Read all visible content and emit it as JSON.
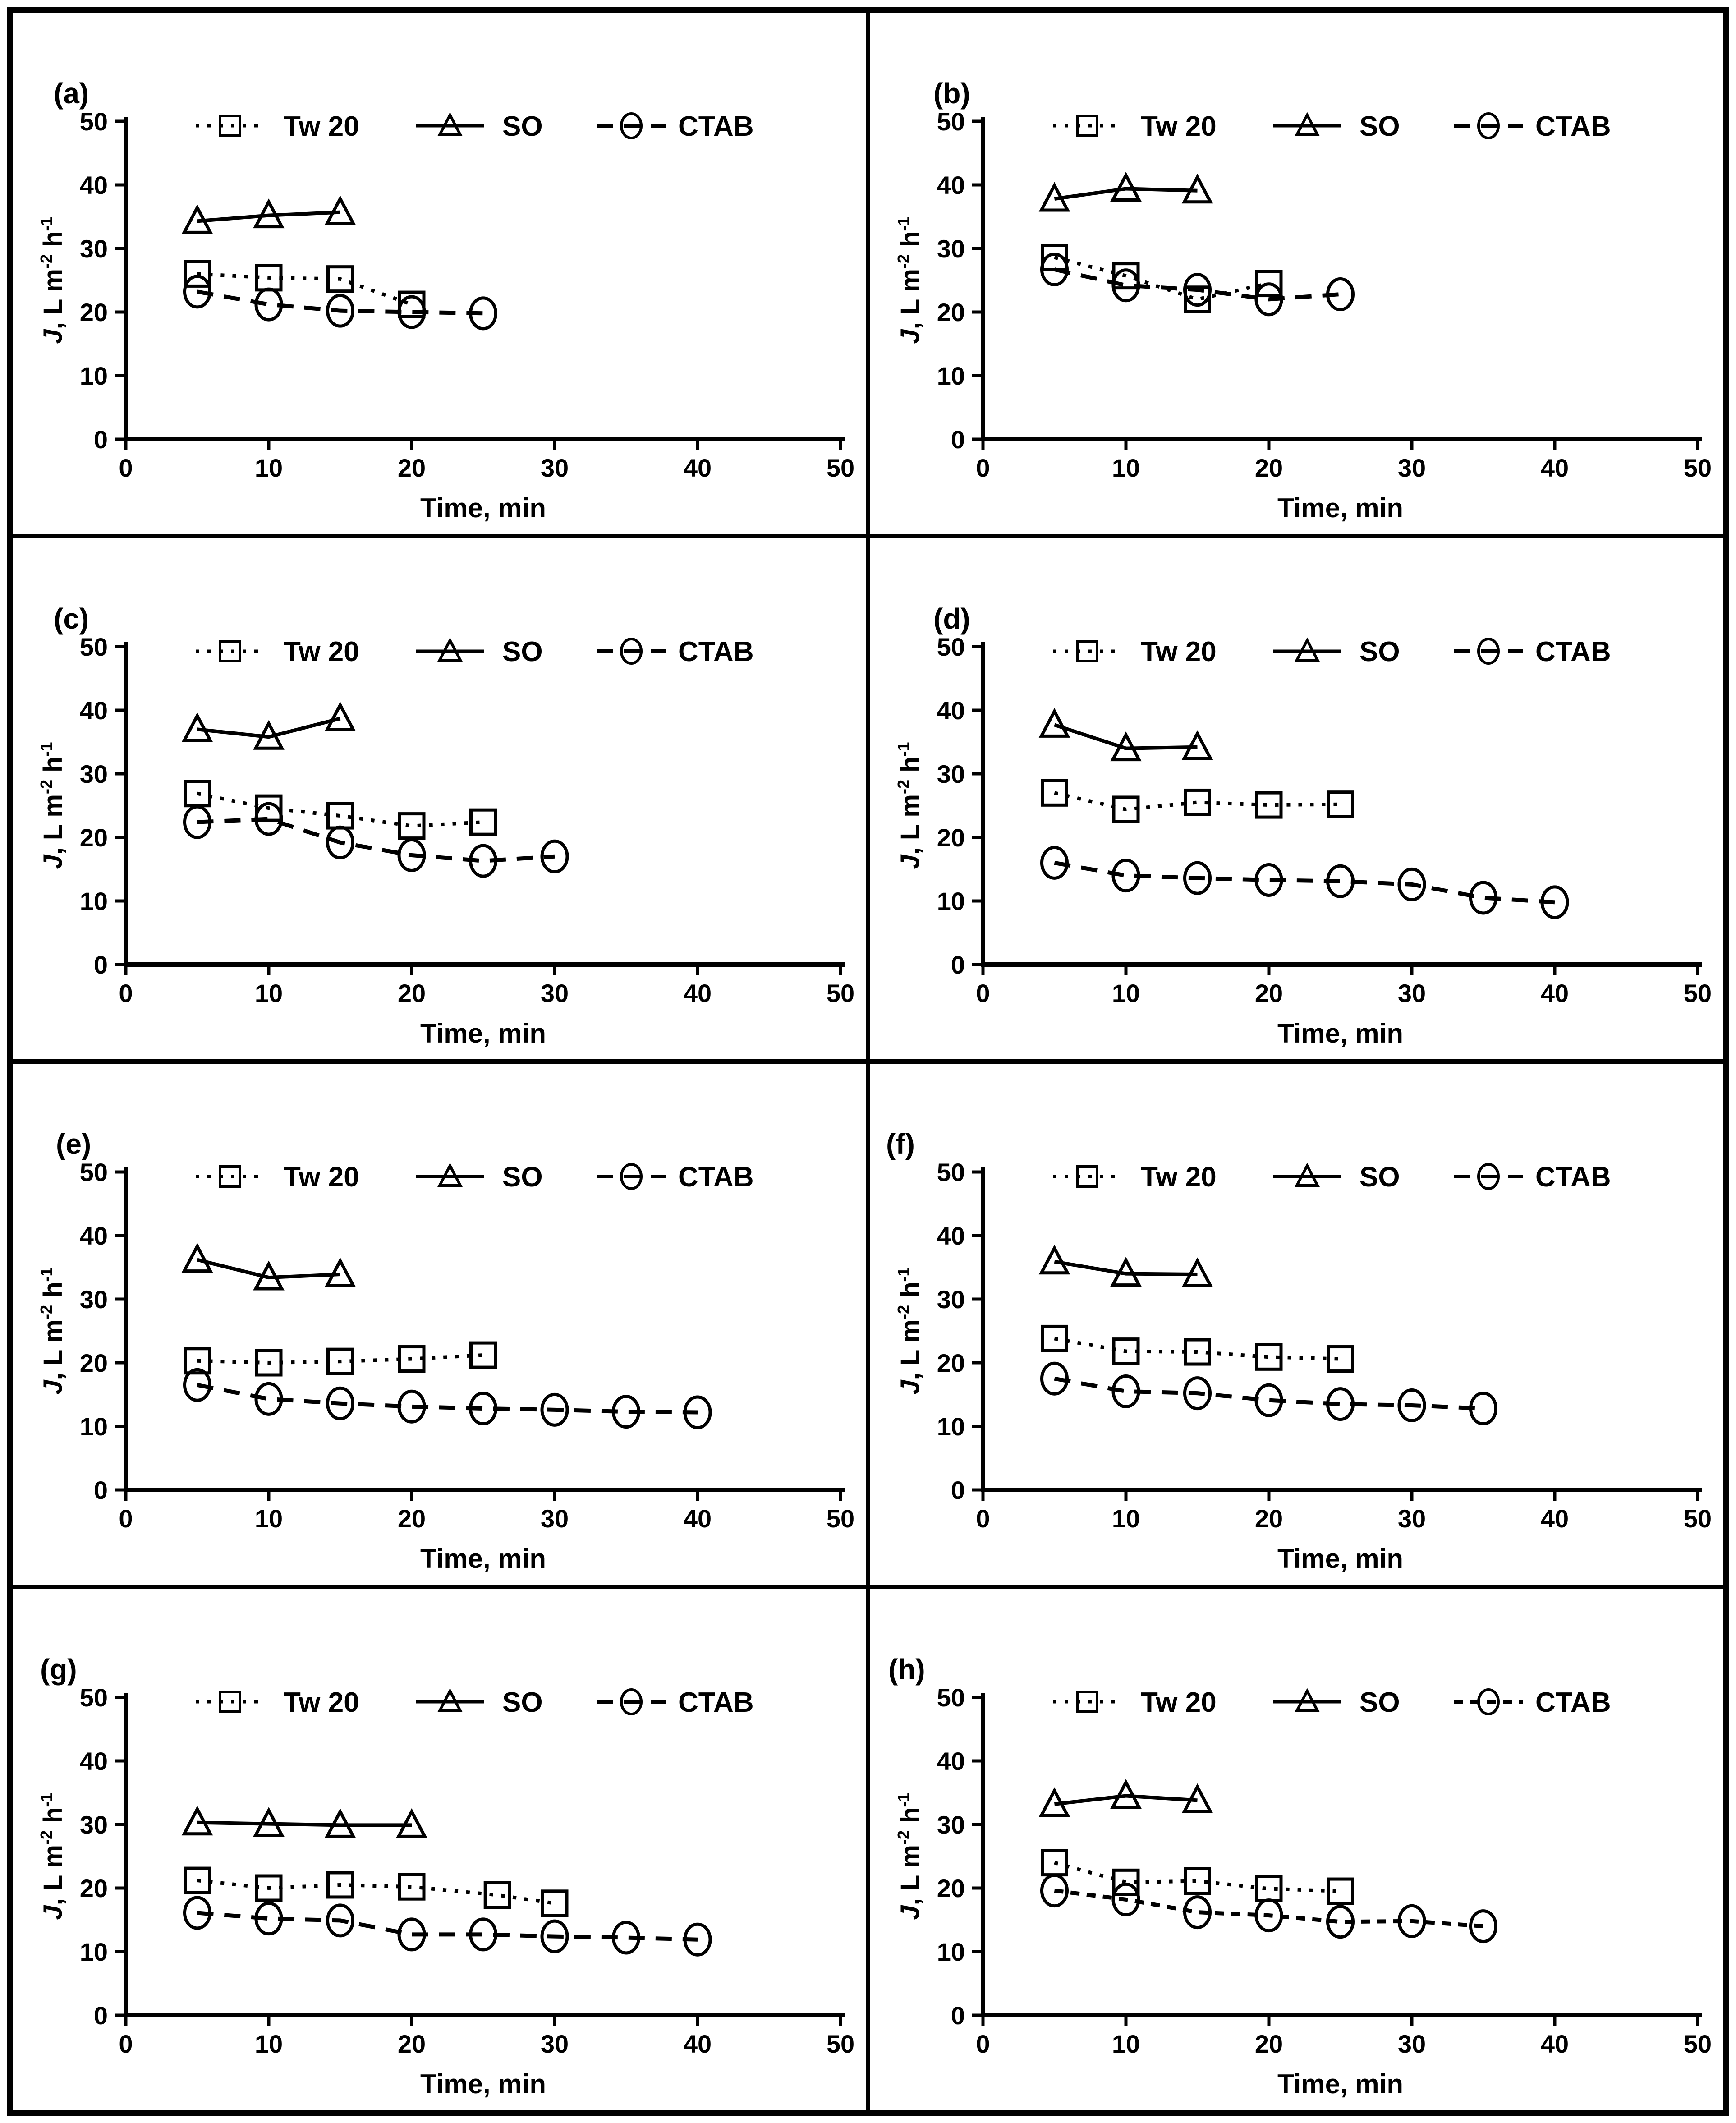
{
  "figure": {
    "background": "#ffffff",
    "ink_color": "#000000",
    "border_color": "#000000",
    "legend": [
      {
        "label": "Tw 20",
        "marker": "square",
        "line": "dotted"
      },
      {
        "label": "SO",
        "marker": "triangle",
        "line": "solid"
      },
      {
        "label": "CTAB",
        "marker": "circle",
        "line": "dashed"
      }
    ],
    "xlabel": "Time, min",
    "ylabel_text": "J, L m-2 h-1",
    "ylabel_parts": [
      {
        "t": "J",
        "italic": true
      },
      {
        "t": ", L m"
      },
      {
        "t": "-2",
        "sup": true
      },
      {
        "t": " h"
      },
      {
        "t": "-1",
        "sup": true
      }
    ]
  },
  "chart_data": [
    {
      "panel": "(a)",
      "type": "line",
      "xlabel": "Time, min",
      "ylabel": "J, L m-2 h-1",
      "xlim": [
        0,
        50
      ],
      "ylim": [
        0,
        50
      ],
      "xticks": [
        0,
        10,
        20,
        30,
        40,
        50
      ],
      "yticks": [
        0,
        10,
        20,
        30,
        40,
        50
      ],
      "series": [
        {
          "name": "Tw 20",
          "marker": "square",
          "line": "dotted",
          "x": [
            5,
            10,
            15,
            20
          ],
          "y": [
            26.0,
            25.4,
            25.2,
            21.2
          ]
        },
        {
          "name": "SO",
          "marker": "triangle",
          "line": "solid",
          "x": [
            5,
            10,
            15
          ],
          "y": [
            34.3,
            35.2,
            35.7
          ]
        },
        {
          "name": "CTAB",
          "marker": "circle",
          "line": "dashed",
          "x": [
            5,
            10,
            15,
            20,
            25
          ],
          "y": [
            23.2,
            21.2,
            20.2,
            20.0,
            19.8
          ]
        }
      ]
    },
    {
      "panel": "(b)",
      "type": "line",
      "xlabel": "Time, min",
      "ylabel": "J, L m-2 h-1",
      "xlim": [
        0,
        50
      ],
      "ylim": [
        0,
        50
      ],
      "xticks": [
        0,
        10,
        20,
        30,
        40,
        50
      ],
      "yticks": [
        0,
        10,
        20,
        30,
        40,
        50
      ],
      "series": [
        {
          "name": "Tw 20",
          "marker": "square",
          "line": "dotted",
          "x": [
            5,
            10,
            15,
            20
          ],
          "y": [
            28.6,
            25.7,
            22.0,
            24.5
          ]
        },
        {
          "name": "SO",
          "marker": "triangle",
          "line": "solid",
          "x": [
            5,
            10,
            15
          ],
          "y": [
            37.8,
            39.4,
            39.1
          ]
        },
        {
          "name": "CTAB",
          "marker": "circle",
          "line": "dashed",
          "x": [
            5,
            10,
            15,
            20,
            25
          ],
          "y": [
            26.7,
            24.2,
            23.5,
            22.0,
            22.8
          ]
        }
      ]
    },
    {
      "panel": "(c)",
      "type": "line",
      "xlabel": "Time, min",
      "ylabel": "J, L m-2 h-1",
      "xlim": [
        0,
        50
      ],
      "ylim": [
        0,
        50
      ],
      "xticks": [
        0,
        10,
        20,
        30,
        40,
        50
      ],
      "yticks": [
        0,
        10,
        20,
        30,
        40,
        50
      ],
      "series": [
        {
          "name": "Tw 20",
          "marker": "square",
          "line": "dotted",
          "x": [
            5,
            10,
            15,
            20,
            25
          ],
          "y": [
            26.9,
            24.6,
            23.4,
            21.8,
            22.4
          ]
        },
        {
          "name": "SO",
          "marker": "triangle",
          "line": "solid",
          "x": [
            5,
            10,
            15
          ],
          "y": [
            37.0,
            35.8,
            38.7
          ]
        },
        {
          "name": "CTAB",
          "marker": "circle",
          "line": "dashed",
          "x": [
            5,
            10,
            15,
            20,
            25,
            30
          ],
          "y": [
            22.4,
            22.9,
            19.2,
            17.2,
            16.3,
            17.0
          ]
        }
      ]
    },
    {
      "panel": "(d)",
      "type": "line",
      "xlabel": "Time, min",
      "ylabel": "J, L m-2 h-1",
      "xlim": [
        0,
        50
      ],
      "ylim": [
        0,
        50
      ],
      "xticks": [
        0,
        10,
        20,
        30,
        40,
        50
      ],
      "yticks": [
        0,
        10,
        20,
        30,
        40,
        50
      ],
      "series": [
        {
          "name": "Tw 20",
          "marker": "square",
          "line": "dotted",
          "x": [
            5,
            10,
            15,
            20,
            25
          ],
          "y": [
            27.0,
            24.4,
            25.5,
            25.1,
            25.2
          ]
        },
        {
          "name": "SO",
          "marker": "triangle",
          "line": "solid",
          "x": [
            5,
            10,
            15
          ],
          "y": [
            37.7,
            34.0,
            34.2
          ]
        },
        {
          "name": "CTAB",
          "marker": "circle",
          "line": "dashed",
          "x": [
            5,
            10,
            15,
            20,
            25,
            30,
            35,
            40
          ],
          "y": [
            16.0,
            14.0,
            13.6,
            13.3,
            13.1,
            12.6,
            10.5,
            9.8
          ]
        }
      ]
    },
    {
      "panel": "(e)",
      "type": "line",
      "xlabel": "Time, min",
      "ylabel": "J, L m-2 h-1",
      "xlim": [
        0,
        50
      ],
      "ylim": [
        0,
        50
      ],
      "xticks": [
        0,
        10,
        20,
        30,
        40,
        50
      ],
      "yticks": [
        0,
        10,
        20,
        30,
        40,
        50
      ],
      "series": [
        {
          "name": "Tw 20",
          "marker": "square",
          "line": "dotted",
          "x": [
            5,
            10,
            15,
            20,
            25
          ],
          "y": [
            20.3,
            20.0,
            20.2,
            20.6,
            21.2
          ]
        },
        {
          "name": "SO",
          "marker": "triangle",
          "line": "solid",
          "x": [
            5,
            10,
            15
          ],
          "y": [
            36.2,
            33.4,
            33.9
          ]
        },
        {
          "name": "CTAB",
          "marker": "circle",
          "line": "dashed",
          "x": [
            5,
            10,
            15,
            20,
            25,
            30,
            35,
            40
          ],
          "y": [
            16.5,
            14.3,
            13.6,
            13.1,
            12.8,
            12.6,
            12.3,
            12.2
          ]
        }
      ]
    },
    {
      "panel": "(f)",
      "type": "line",
      "xlabel": "Time, min",
      "ylabel": "J, L m-2 h-1",
      "xlim": [
        0,
        50
      ],
      "ylim": [
        0,
        50
      ],
      "xticks": [
        0,
        10,
        20,
        30,
        40,
        50
      ],
      "yticks": [
        0,
        10,
        20,
        30,
        40,
        50
      ],
      "series": [
        {
          "name": "Tw 20",
          "marker": "square",
          "line": "dotted",
          "x": [
            5,
            10,
            15,
            20,
            25
          ],
          "y": [
            23.8,
            21.8,
            21.7,
            20.9,
            20.6
          ]
        },
        {
          "name": "SO",
          "marker": "triangle",
          "line": "solid",
          "x": [
            5,
            10,
            15
          ],
          "y": [
            35.9,
            34.0,
            33.9
          ]
        },
        {
          "name": "CTAB",
          "marker": "circle",
          "line": "dashed",
          "x": [
            5,
            10,
            15,
            20,
            25,
            30,
            35
          ],
          "y": [
            17.5,
            15.5,
            15.2,
            14.1,
            13.5,
            13.3,
            12.8
          ]
        }
      ]
    },
    {
      "panel": "(g)",
      "type": "line",
      "xlabel": "Time, min",
      "ylabel": "J, L m-2 h-1",
      "xlim": [
        0,
        50
      ],
      "ylim": [
        0,
        50
      ],
      "xticks": [
        0,
        10,
        20,
        30,
        40,
        50
      ],
      "yticks": [
        0,
        10,
        20,
        30,
        40,
        50
      ],
      "series": [
        {
          "name": "Tw 20",
          "marker": "square",
          "line": "dotted",
          "x": [
            5,
            10,
            15,
            20,
            26,
            30
          ],
          "y": [
            21.2,
            20.0,
            20.5,
            20.2,
            18.9,
            17.6
          ]
        },
        {
          "name": "SO",
          "marker": "triangle",
          "line": "solid",
          "x": [
            5,
            10,
            15,
            20
          ],
          "y": [
            30.3,
            30.1,
            29.9,
            29.9
          ]
        },
        {
          "name": "CTAB",
          "marker": "circle",
          "line": "dashed",
          "x": [
            5,
            10,
            15,
            20,
            25,
            30,
            35,
            40
          ],
          "y": [
            16.1,
            15.2,
            14.9,
            12.7,
            12.7,
            12.4,
            12.2,
            11.9
          ]
        }
      ]
    },
    {
      "panel": "(h)",
      "type": "line",
      "xlabel": "Time, min",
      "ylabel": "J, L m-2 h-1",
      "xlim": [
        0,
        50
      ],
      "ylim": [
        0,
        50
      ],
      "xticks": [
        0,
        10,
        20,
        30,
        40,
        50
      ],
      "yticks": [
        0,
        10,
        20,
        30,
        40,
        50
      ],
      "series": [
        {
          "name": "Tw 20",
          "marker": "square",
          "line": "dotted",
          "x": [
            5,
            10,
            15,
            20,
            25
          ],
          "y": [
            24.0,
            20.9,
            21.1,
            19.9,
            19.5
          ]
        },
        {
          "name": "SO",
          "marker": "triangle",
          "line": "solid",
          "x": [
            5,
            10,
            15
          ],
          "y": [
            33.2,
            34.5,
            33.8
          ]
        },
        {
          "name": "CTAB",
          "marker": "circle",
          "line": "dashed-fine",
          "x": [
            5,
            10,
            15,
            20,
            25,
            30,
            35
          ],
          "y": [
            19.6,
            18.2,
            16.2,
            15.7,
            14.7,
            14.8,
            14.0
          ]
        }
      ]
    }
  ]
}
